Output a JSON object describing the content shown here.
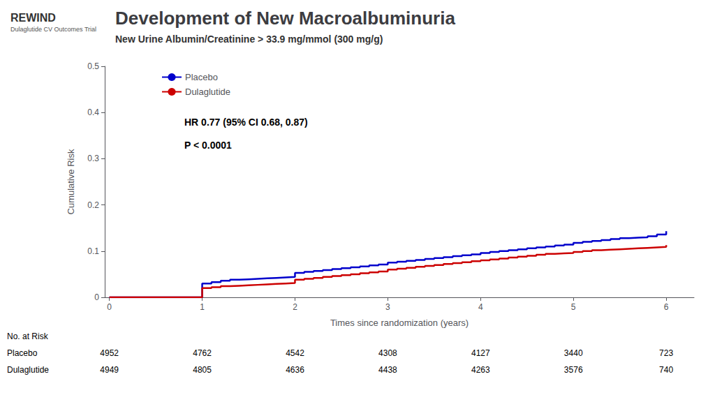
{
  "chart_data": {
    "type": "step",
    "title": "Development of New Macroalbuminuria",
    "subtitle": "New Urine Albumin/Creatinine > 33.9 mg/mmol (300 mg/g)",
    "brand": "REWIND",
    "brand_subtitle": "Dulaglutide CV Outcomes Trial",
    "xlabel": "Times since randomization (years)",
    "ylabel": "Cumulative Risk",
    "xlim": [
      -0.05,
      6.3
    ],
    "ylim": [
      0,
      0.5
    ],
    "xticks": [
      0,
      1,
      2,
      3,
      4,
      5,
      6
    ],
    "yticks": [
      0,
      0.1,
      0.2,
      0.3,
      0.4,
      0.5
    ],
    "grid": false,
    "legend": "upper left",
    "annotations": [
      "HR 0.77 (95% CI 0.68, 0.87)",
      "P < 0.0001"
    ],
    "series": [
      {
        "name": "Placebo",
        "color": "#0000CC",
        "x": [
          0.0,
          0.95,
          1.0,
          1.1,
          1.2,
          1.3,
          1.4,
          1.5,
          1.6,
          1.7,
          1.8,
          1.9,
          2.0,
          2.1,
          2.2,
          2.3,
          2.4,
          2.5,
          2.6,
          2.7,
          2.8,
          2.9,
          3.0,
          3.1,
          3.2,
          3.3,
          3.4,
          3.5,
          3.6,
          3.7,
          3.8,
          3.9,
          4.0,
          4.1,
          4.2,
          4.3,
          4.4,
          4.5,
          4.6,
          4.7,
          4.8,
          4.9,
          5.0,
          5.1,
          5.2,
          5.3,
          5.4,
          5.5,
          5.6,
          5.7,
          5.8,
          5.9,
          6.0
        ],
        "values": [
          0.0,
          0.0,
          0.03,
          0.033,
          0.036,
          0.038,
          0.039,
          0.04,
          0.041,
          0.042,
          0.043,
          0.044,
          0.053,
          0.055,
          0.057,
          0.059,
          0.061,
          0.063,
          0.065,
          0.067,
          0.069,
          0.071,
          0.075,
          0.077,
          0.079,
          0.081,
          0.083,
          0.085,
          0.087,
          0.089,
          0.091,
          0.093,
          0.096,
          0.098,
          0.1,
          0.102,
          0.104,
          0.106,
          0.108,
          0.11,
          0.112,
          0.114,
          0.118,
          0.12,
          0.122,
          0.124,
          0.126,
          0.128,
          0.129,
          0.13,
          0.132,
          0.136,
          0.143
        ]
      },
      {
        "name": "Dulaglutide",
        "color": "#CC0000",
        "x": [
          0.0,
          0.95,
          1.0,
          1.1,
          1.2,
          1.3,
          1.4,
          1.5,
          1.6,
          1.7,
          1.8,
          1.9,
          2.0,
          2.1,
          2.2,
          2.3,
          2.4,
          2.5,
          2.6,
          2.7,
          2.8,
          2.9,
          3.0,
          3.1,
          3.2,
          3.3,
          3.4,
          3.5,
          3.6,
          3.7,
          3.8,
          3.9,
          4.0,
          4.1,
          4.2,
          4.3,
          4.4,
          4.5,
          4.6,
          4.7,
          4.8,
          4.9,
          5.0,
          5.1,
          5.2,
          5.3,
          5.4,
          5.5,
          5.6,
          5.7,
          5.8,
          5.9,
          6.0
        ],
        "values": [
          0.0,
          0.0,
          0.02,
          0.022,
          0.024,
          0.025,
          0.026,
          0.027,
          0.028,
          0.029,
          0.03,
          0.031,
          0.038,
          0.04,
          0.042,
          0.044,
          0.046,
          0.048,
          0.05,
          0.052,
          0.054,
          0.056,
          0.06,
          0.062,
          0.064,
          0.066,
          0.068,
          0.07,
          0.072,
          0.074,
          0.076,
          0.078,
          0.08,
          0.082,
          0.084,
          0.086,
          0.088,
          0.09,
          0.092,
          0.094,
          0.095,
          0.096,
          0.098,
          0.1,
          0.102,
          0.103,
          0.104,
          0.105,
          0.106,
          0.107,
          0.108,
          0.109,
          0.113
        ]
      }
    ],
    "at_risk": {
      "label": "No. at Risk",
      "times": [
        0,
        1,
        2,
        3,
        4,
        5,
        6
      ],
      "rows": [
        {
          "name": "Placebo",
          "values": [
            4952,
            4762,
            4542,
            4308,
            4127,
            3440,
            723
          ]
        },
        {
          "name": "Dulaglutide",
          "values": [
            4949,
            4805,
            4636,
            4438,
            4263,
            3576,
            740
          ]
        }
      ]
    }
  }
}
